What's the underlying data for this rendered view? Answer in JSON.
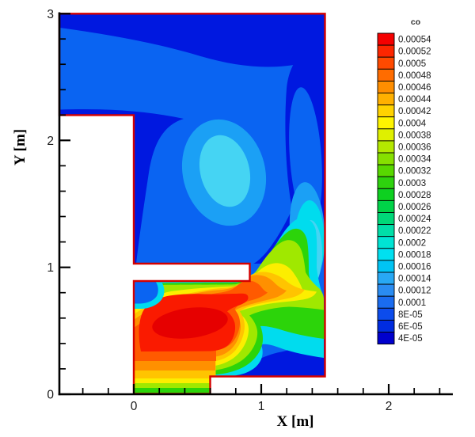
{
  "palette": {
    "white": "#ffffff",
    "outline_red": "#d40000",
    "axis_black": "#000000",
    "navy": "#0018e0",
    "royal": "#0a64f2",
    "sky": "#1ba0f5",
    "light_cyan": "#45d4f3",
    "cyan": "#00dcee",
    "green": "#2cd40a",
    "yellow_green": "#a0e800",
    "yellow": "#fcee00",
    "amber": "#ffc400",
    "orange": "#ff9000",
    "orange_red": "#ff5a00",
    "red": "#fa1a00",
    "dark_red": "#e60000"
  },
  "axes": {
    "x": {
      "title": "X [m]",
      "tick_labels": [
        "0",
        "1",
        "2"
      ],
      "range": [
        -0.6,
        2.5
      ],
      "minor_step": 0.2
    },
    "y": {
      "title": "Y [m]",
      "tick_labels": [
        "0",
        "1",
        "2",
        "3"
      ],
      "range": [
        0,
        3
      ],
      "minor_step": 0.2
    }
  },
  "legend": {
    "title": "co",
    "entries": [
      {
        "label": "0.00054",
        "color": "#f40000"
      },
      {
        "label": "0.00052",
        "color": "#fc2600"
      },
      {
        "label": "0.0005",
        "color": "#ff4a00"
      },
      {
        "label": "0.00048",
        "color": "#ff6c00"
      },
      {
        "label": "0.00046",
        "color": "#ff8e00"
      },
      {
        "label": "0.00044",
        "color": "#ffb000"
      },
      {
        "label": "0.00042",
        "color": "#ffd200"
      },
      {
        "label": "0.0004",
        "color": "#fef400"
      },
      {
        "label": "0.00038",
        "color": "#dff000"
      },
      {
        "label": "0.00036",
        "color": "#b4e800"
      },
      {
        "label": "0.00034",
        "color": "#86e000"
      },
      {
        "label": "0.00032",
        "color": "#58d800"
      },
      {
        "label": "0.0003",
        "color": "#2ed20e"
      },
      {
        "label": "0.00028",
        "color": "#0ed020"
      },
      {
        "label": "0.00026",
        "color": "#00d348"
      },
      {
        "label": "0.00024",
        "color": "#00d878"
      },
      {
        "label": "0.00022",
        "color": "#00dea8"
      },
      {
        "label": "0.0002",
        "color": "#00e4d4"
      },
      {
        "label": "0.00018",
        "color": "#00e0f0"
      },
      {
        "label": "0.00016",
        "color": "#00c4f4"
      },
      {
        "label": "0.00014",
        "color": "#28a8f4"
      },
      {
        "label": "0.00012",
        "color": "#2a8cf2"
      },
      {
        "label": "0.0001",
        "color": "#1a6cf0"
      },
      {
        "label": "8E-05",
        "color": "#0c4cec"
      },
      {
        "label": "6E-05",
        "color": "#002ce0"
      },
      {
        "label": "4E-05",
        "color": "#0000cd"
      }
    ]
  },
  "chart_data": {
    "type": "heatmap",
    "subtype": "filled-contour-CFD",
    "field": "co",
    "title": "",
    "xlabel": "X [m]",
    "ylabel": "Y [m]",
    "xlim": [
      -0.6,
      2.5
    ],
    "ylim": [
      0,
      3
    ],
    "grid": false,
    "legend_position": "right",
    "levels": [
      4e-05,
      6e-05,
      8e-05,
      0.0001,
      0.00012,
      0.00014,
      0.00016,
      0.00018,
      0.0002,
      0.00022,
      0.00024,
      0.00026,
      0.00028,
      0.0003,
      0.00032,
      0.00034,
      0.00036,
      0.00038,
      0.0004,
      0.00042,
      0.00044,
      0.00046,
      0.00048,
      0.0005,
      0.00052,
      0.00054
    ],
    "domain_outline_m": [
      [
        -0.6,
        3
      ],
      [
        1.5,
        3
      ],
      [
        1.5,
        0.15
      ],
      [
        0.6,
        0.15
      ],
      [
        0.6,
        0
      ],
      [
        0,
        0
      ],
      [
        0,
        0.9
      ],
      [
        0.9,
        0.9
      ],
      [
        0.9,
        1.05
      ],
      [
        0,
        1.05
      ],
      [
        0,
        2.2
      ],
      [
        -0.6,
        2.2
      ]
    ],
    "features": [
      "Peak co (red, ~0.00054) fills the lower chamber around x 0.1-0.85 m, y 0.3-0.75 m",
      "Inlet column 0<x<0.6 m shows stratified green-yellow-orange-red bands rising from y=0",
      "Warm plume escapes through the baffle gap (0.9<x<1.5 m at y 0.9-1.05 m) and sweeps up the right wall as green/cyan bands",
      "Upper room is low co (blue); lighter cyan pocket centered near (0.7, 1.8) m; darkest blue along the top wall, right wall and left wall shelf"
    ]
  }
}
